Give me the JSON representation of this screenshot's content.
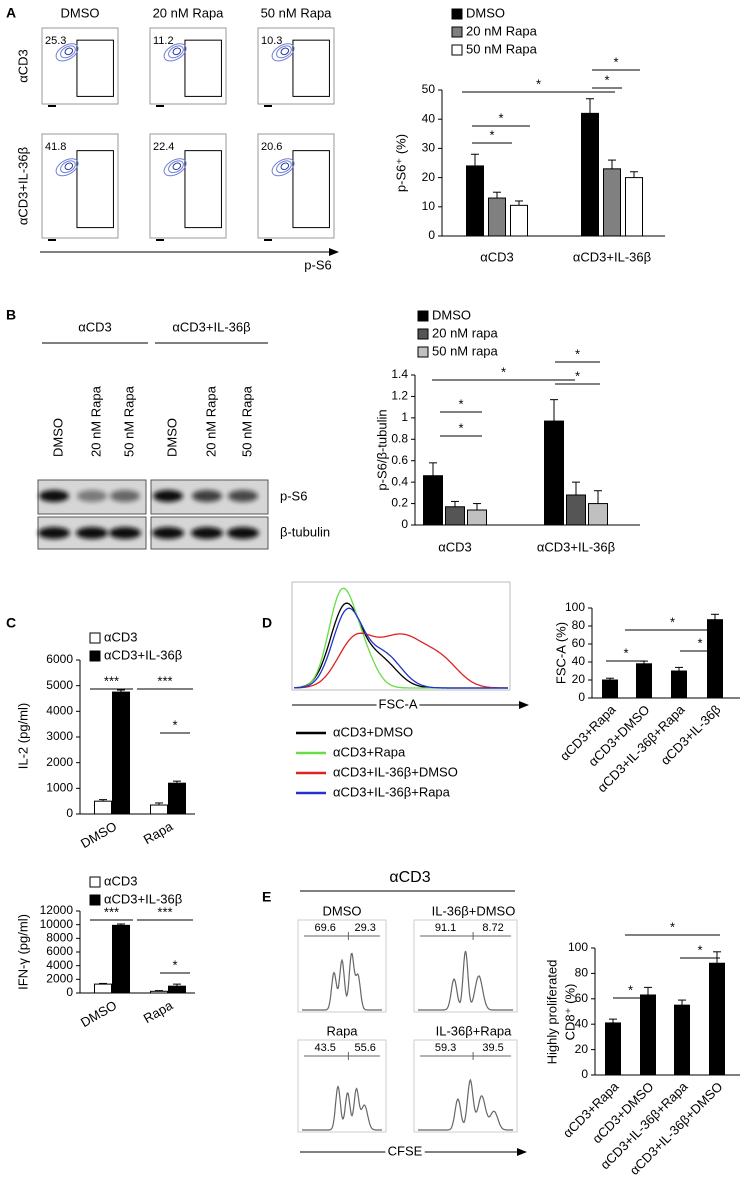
{
  "chart_data": [
    {
      "type": "bar",
      "ylabel": "p-S6⁺ (%)",
      "categories": [
        "αCD3",
        "αCD3+IL-36β"
      ],
      "series": [
        {
          "name": "DMSO",
          "color": "#000000",
          "values": [
            24,
            42
          ],
          "errors": [
            4,
            5
          ]
        },
        {
          "name": "20 nM Rapa",
          "color": "#808080",
          "values": [
            13,
            23
          ],
          "errors": [
            2,
            3
          ]
        },
        {
          "name": "50 nM Rapa",
          "color": "#ffffff",
          "values": [
            10.5,
            20
          ],
          "errors": [
            1.5,
            2
          ]
        }
      ],
      "ylim": [
        0,
        50
      ],
      "yticks": [
        0,
        10,
        20,
        30,
        40,
        50
      ],
      "annotations": [
        "*",
        "*",
        "*",
        "*",
        "*"
      ]
    },
    {
      "type": "bar",
      "ylabel": "p-S6/β-tubulin",
      "categories": [
        "αCD3",
        "αCD3+IL-36β"
      ],
      "series": [
        {
          "name": "DMSO",
          "color": "#000000",
          "values": [
            0.46,
            0.97
          ],
          "errors": [
            0.12,
            0.2
          ]
        },
        {
          "name": "20 nM rapa",
          "color": "#555555",
          "values": [
            0.17,
            0.28
          ],
          "errors": [
            0.05,
            0.12
          ]
        },
        {
          "name": "50 nM rapa",
          "color": "#c0c0c0",
          "values": [
            0.14,
            0.2
          ],
          "errors": [
            0.06,
            0.12
          ]
        }
      ],
      "ylim": [
        0,
        1.4
      ],
      "yticks": [
        0,
        0.2,
        0.4,
        0.6,
        0.8,
        1,
        1.2,
        1.4
      ],
      "annotations": [
        "*",
        "*",
        "*",
        "*",
        "*"
      ]
    },
    {
      "type": "bar",
      "ylabel": "IL-2 (pg/ml)",
      "categories": [
        "DMSO",
        "Rapa"
      ],
      "series": [
        {
          "name": "αCD3",
          "color": "#ffffff",
          "values": [
            500,
            350
          ],
          "errors": [
            60,
            80
          ]
        },
        {
          "name": "αCD3+IL-36β",
          "color": "#000000",
          "values": [
            4750,
            1200
          ],
          "errors": [
            80,
            80
          ]
        }
      ],
      "ylim": [
        0,
        6000
      ],
      "yticks": [
        0,
        1000,
        2000,
        3000,
        4000,
        5000,
        6000
      ],
      "annotations": [
        "***",
        "***",
        "*"
      ]
    },
    {
      "type": "bar",
      "ylabel": "IFN-γ (pg/ml)",
      "categories": [
        "DMSO",
        "Rapa"
      ],
      "series": [
        {
          "name": "αCD3",
          "color": "#ffffff",
          "values": [
            1300,
            250
          ],
          "errors": [
            100,
            100
          ]
        },
        {
          "name": "αCD3+IL-36β",
          "color": "#000000",
          "values": [
            9900,
            1000
          ],
          "errors": [
            200,
            300
          ]
        }
      ],
      "ylim": [
        0,
        12000
      ],
      "yticks": [
        0,
        2000,
        4000,
        6000,
        8000,
        10000,
        12000
      ],
      "annotations": [
        "***",
        "***",
        "*"
      ]
    },
    {
      "type": "bar",
      "ylabel": "FSC-A (%)",
      "categories": [
        "αCD3+Rapa",
        "αCD3+DMSO",
        "αCD3+IL-36β+Rapa",
        "αCD3+IL-36β"
      ],
      "values": [
        20,
        38,
        30,
        87
      ],
      "errors": [
        2,
        3,
        4,
        6
      ],
      "color": "#000000",
      "ylim": [
        0,
        100
      ],
      "yticks": [
        0,
        20,
        40,
        60,
        80,
        100
      ],
      "annotations": [
        "*",
        "*",
        "*"
      ]
    },
    {
      "type": "bar",
      "ylabel": [
        "Highly proliferated",
        "CD8⁺ (%)"
      ],
      "categories": [
        "αCD3+Rapa",
        "αCD3+DMSO",
        "αCD3+IL-36β+Rapa",
        "αCD3+IL-36β+DMSO"
      ],
      "values": [
        41,
        63,
        55,
        88
      ],
      "errors": [
        3,
        6,
        4,
        9
      ],
      "color": "#000000",
      "ylim": [
        0,
        100
      ],
      "yticks": [
        0,
        20,
        40,
        60,
        80,
        100
      ],
      "annotations": [
        "*",
        "*",
        "*"
      ]
    }
  ],
  "panels": {
    "labels": [
      "A",
      "B",
      "C",
      "D",
      "E"
    ],
    "A": {
      "columns": [
        "DMSO",
        "20 nM Rapa",
        "50 nM Rapa"
      ],
      "rows": [
        "αCD3",
        "αCD3+IL-36β"
      ],
      "percentages": [
        [
          "25.3",
          "11.2",
          "10.3"
        ],
        [
          "41.8",
          "22.4",
          "20.6"
        ]
      ],
      "x_label": "p-S6"
    },
    "B": {
      "groups": [
        "αCD3",
        "αCD3+IL-36β"
      ],
      "lanes": [
        "DMSO",
        "20 nM Rapa",
        "50 nM Rapa",
        "DMSO",
        "20 nM Rapa",
        "50 nM Rapa"
      ],
      "bands": [
        "p-S6",
        "β-tubulin"
      ]
    },
    "D": {
      "x_label": "FSC-A",
      "legend": [
        {
          "name": "αCD3+DMSO",
          "color": "#000000"
        },
        {
          "name": "αCD3+Rapa",
          "color": "#66dd44"
        },
        {
          "name": "αCD3+IL-36β+DMSO",
          "color": "#dd2222"
        },
        {
          "name": "αCD3+IL-36β+Rapa",
          "color": "#2233cc"
        }
      ]
    },
    "E": {
      "title": "αCD3",
      "x_label": "CFSE",
      "plots": [
        {
          "name": "DMSO",
          "gates": [
            "69.6",
            "29.3"
          ]
        },
        {
          "name": "IL-36β+DMSO",
          "gates": [
            "91.1",
            "8.72"
          ]
        },
        {
          "name": "Rapa",
          "gates": [
            "43.5",
            "55.6"
          ]
        },
        {
          "name": "IL-36β+Rapa",
          "gates": [
            "59.3",
            "39.5"
          ]
        }
      ]
    }
  }
}
